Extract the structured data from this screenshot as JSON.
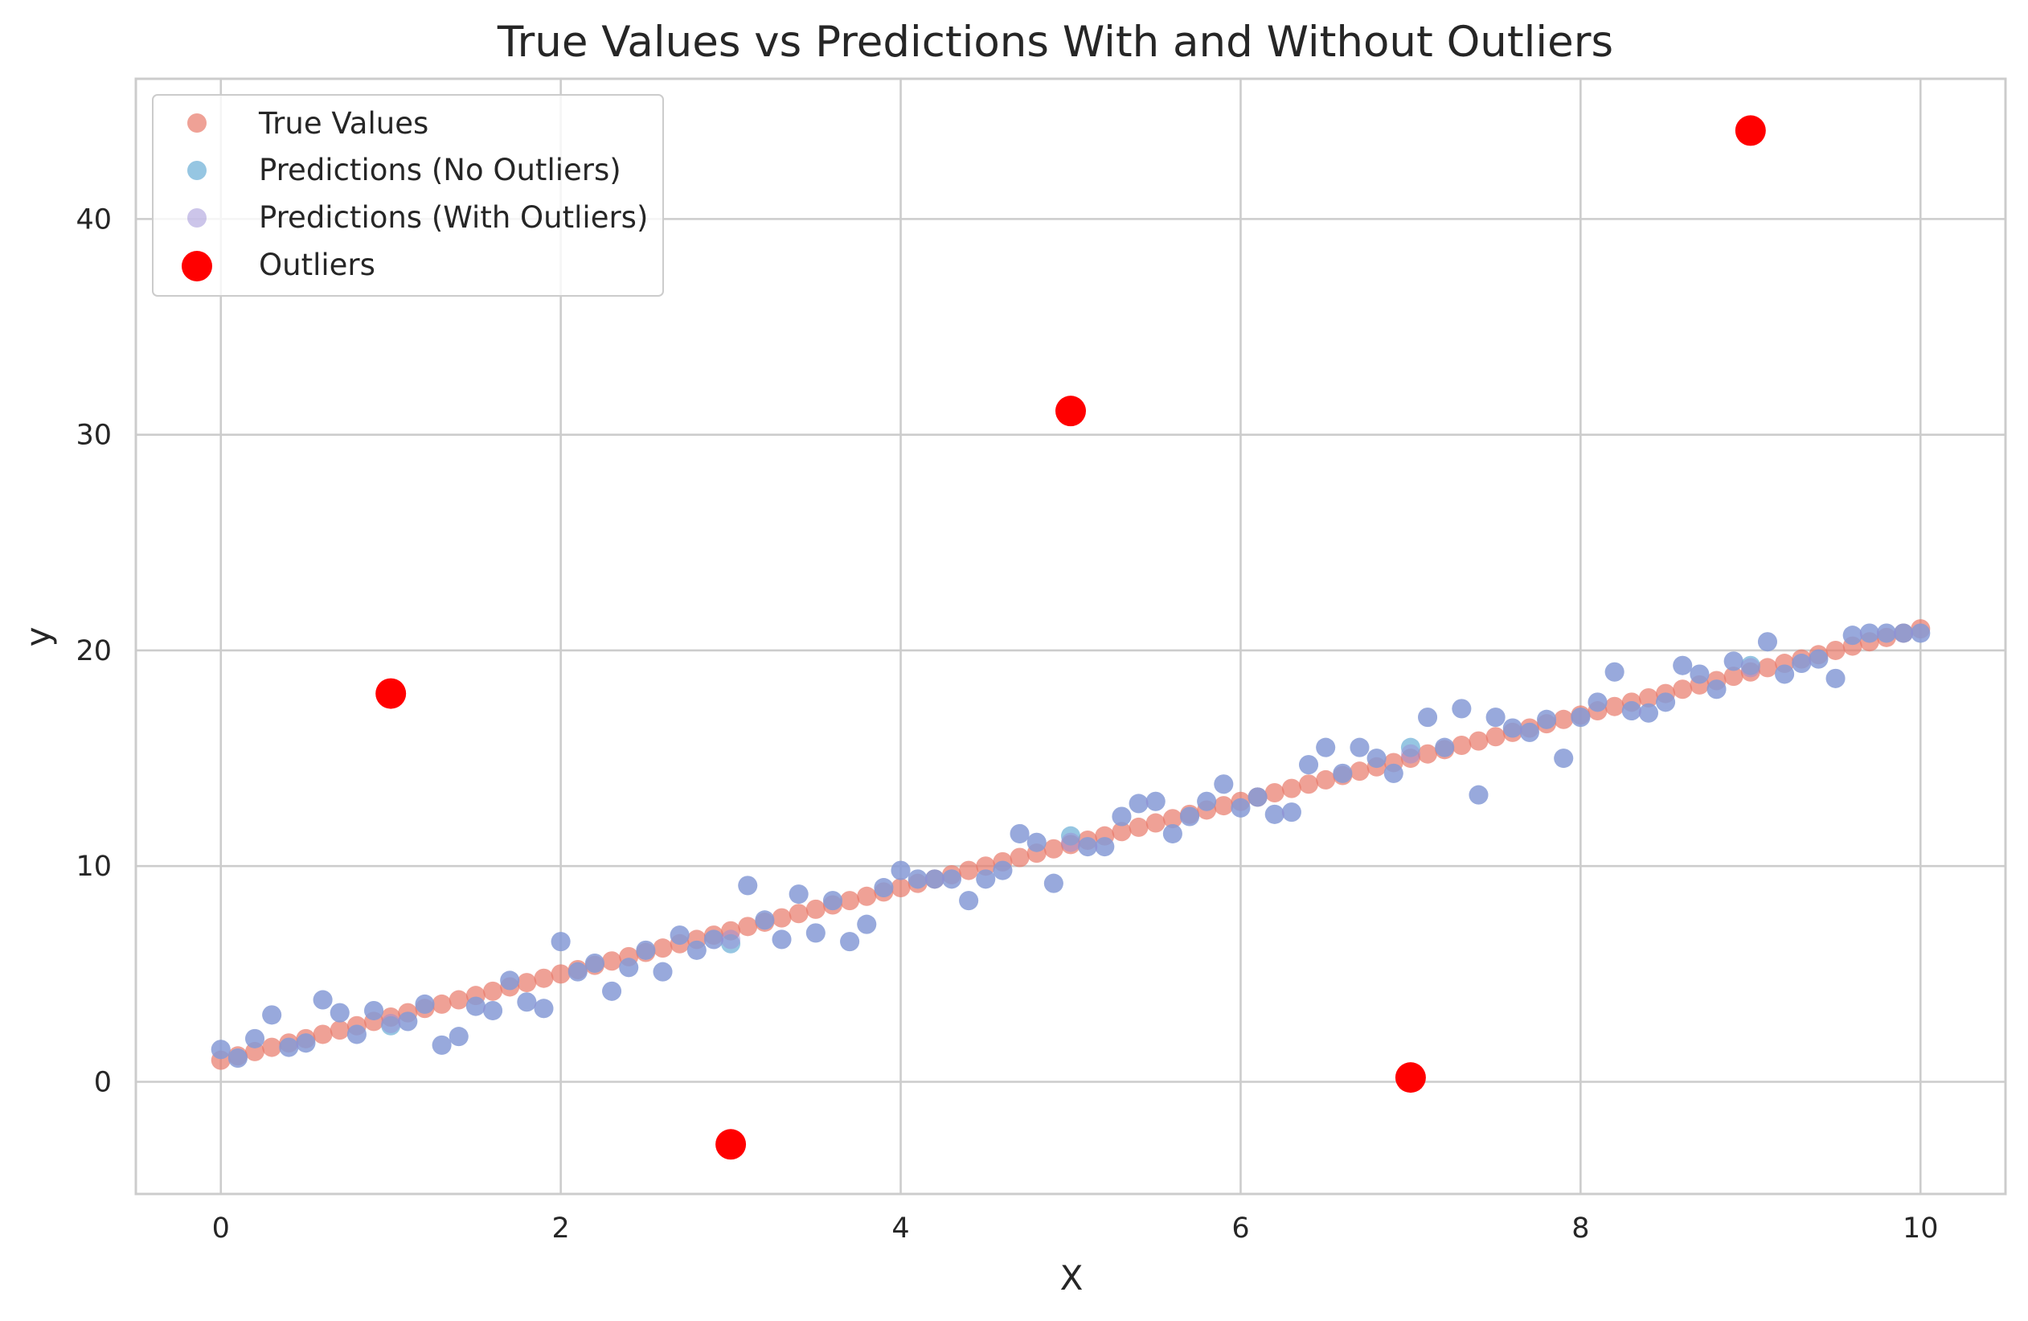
{
  "chart_data": {
    "type": "scatter",
    "title": "True Values vs Predictions With and Without Outliers",
    "xlabel": "X",
    "ylabel": "y",
    "xlim": [
      -0.5,
      10.5
    ],
    "ylim": [
      -5.2,
      46.5
    ],
    "xticks": [
      0,
      2,
      4,
      6,
      8,
      10
    ],
    "yticks": [
      0,
      10,
      20,
      30,
      40
    ],
    "grid": true,
    "legend_position": "top-left",
    "x": [
      0.0,
      0.1,
      0.2,
      0.3,
      0.4,
      0.5,
      0.6,
      0.7,
      0.8,
      0.9,
      1.0,
      1.1,
      1.2,
      1.3,
      1.4,
      1.5,
      1.6,
      1.7,
      1.8,
      1.9,
      2.0,
      2.1,
      2.2,
      2.3,
      2.4,
      2.5,
      2.6,
      2.7,
      2.8,
      2.9,
      3.0,
      3.1,
      3.2,
      3.3,
      3.4,
      3.5,
      3.6,
      3.7,
      3.8,
      3.9,
      4.0,
      4.1,
      4.2,
      4.3,
      4.4,
      4.5,
      4.6,
      4.7,
      4.8,
      4.9,
      5.0,
      5.1,
      5.2,
      5.3,
      5.4,
      5.5,
      5.6,
      5.7,
      5.8,
      5.9,
      6.0,
      6.1,
      6.2,
      6.3,
      6.4,
      6.5,
      6.6,
      6.7,
      6.8,
      6.9,
      7.0,
      7.1,
      7.2,
      7.3,
      7.4,
      7.5,
      7.6,
      7.7,
      7.8,
      7.9,
      8.0,
      8.1,
      8.2,
      8.3,
      8.4,
      8.5,
      8.6,
      8.7,
      8.8,
      8.9,
      9.0,
      9.1,
      9.2,
      9.3,
      9.4,
      9.5,
      9.6,
      9.7,
      9.8,
      9.9,
      10.0
    ],
    "series": [
      {
        "name": "True Values",
        "color": "#e8796a",
        "marker": "small-circle",
        "values": [
          1.0,
          1.2,
          1.4,
          1.6,
          1.8,
          2.0,
          2.2,
          2.4,
          2.6,
          2.8,
          3.0,
          3.2,
          3.4,
          3.6,
          3.8,
          4.0,
          4.2,
          4.4,
          4.6,
          4.8,
          5.0,
          5.2,
          5.4,
          5.6,
          5.8,
          6.0,
          6.2,
          6.4,
          6.6,
          6.8,
          7.0,
          7.2,
          7.4,
          7.6,
          7.8,
          8.0,
          8.2,
          8.4,
          8.6,
          8.8,
          9.0,
          9.2,
          9.4,
          9.6,
          9.8,
          10.0,
          10.2,
          10.4,
          10.6,
          10.8,
          11.0,
          11.2,
          11.4,
          11.6,
          11.8,
          12.0,
          12.2,
          12.4,
          12.6,
          12.8,
          13.0,
          13.2,
          13.4,
          13.6,
          13.8,
          14.0,
          14.2,
          14.4,
          14.6,
          14.8,
          15.0,
          15.2,
          15.4,
          15.6,
          15.8,
          16.0,
          16.2,
          16.4,
          16.6,
          16.8,
          17.0,
          17.2,
          17.4,
          17.6,
          17.8,
          18.0,
          18.2,
          18.4,
          18.6,
          18.8,
          19.0,
          19.2,
          19.4,
          19.6,
          19.8,
          20.0,
          20.2,
          20.4,
          20.6,
          20.8,
          21.0
        ]
      },
      {
        "name": "Predictions (No Outliers)",
        "color": "#6aaed6",
        "marker": "small-circle",
        "values": [
          1.5,
          1.1,
          2.0,
          3.1,
          1.6,
          1.8,
          3.8,
          3.2,
          2.2,
          3.3,
          2.6,
          2.8,
          3.6,
          1.7,
          2.1,
          3.5,
          3.3,
          4.7,
          3.7,
          3.4,
          6.5,
          5.1,
          5.5,
          4.2,
          5.3,
          6.1,
          5.1,
          6.8,
          6.1,
          6.6,
          6.4,
          9.1,
          7.5,
          6.6,
          8.7,
          6.9,
          8.4,
          6.5,
          7.3,
          9.0,
          9.8,
          9.4,
          9.4,
          9.4,
          8.4,
          9.4,
          9.8,
          11.5,
          11.1,
          9.2,
          11.4,
          10.9,
          10.9,
          12.3,
          12.9,
          13.0,
          11.5,
          12.3,
          13.0,
          13.8,
          12.7,
          13.2,
          12.4,
          12.5,
          14.7,
          15.5,
          14.3,
          15.5,
          15.0,
          14.3,
          15.5,
          16.9,
          15.5,
          17.3,
          13.3,
          16.9,
          16.4,
          16.2,
          16.8,
          15.0,
          16.9,
          17.6,
          19.0,
          17.2,
          17.1,
          17.6,
          19.3,
          18.9,
          18.2,
          19.5,
          19.3,
          20.4,
          18.9,
          19.4,
          19.6,
          18.7,
          20.7,
          20.8,
          20.8,
          20.8,
          20.8
        ]
      },
      {
        "name": "Predictions (With Outliers)",
        "color": "#9a8cd6",
        "marker": "small-circle",
        "values": [
          1.5,
          1.1,
          2.0,
          3.1,
          1.6,
          1.8,
          3.8,
          3.2,
          2.2,
          3.3,
          2.7,
          2.8,
          3.6,
          1.7,
          2.1,
          3.5,
          3.3,
          4.7,
          3.7,
          3.4,
          6.5,
          5.1,
          5.5,
          4.2,
          5.3,
          6.1,
          5.1,
          6.8,
          6.1,
          6.6,
          6.6,
          9.1,
          7.5,
          6.6,
          8.7,
          6.9,
          8.4,
          6.5,
          7.3,
          9.0,
          9.8,
          9.4,
          9.4,
          9.4,
          8.4,
          9.4,
          9.8,
          11.5,
          11.1,
          9.2,
          11.1,
          10.9,
          10.9,
          12.3,
          12.9,
          13.0,
          11.5,
          12.3,
          13.0,
          13.8,
          12.7,
          13.2,
          12.4,
          12.5,
          14.7,
          15.5,
          14.3,
          15.5,
          15.0,
          14.3,
          15.2,
          16.9,
          15.5,
          17.3,
          13.3,
          16.9,
          16.4,
          16.2,
          16.8,
          15.0,
          16.9,
          17.6,
          19.0,
          17.2,
          17.1,
          17.6,
          19.3,
          18.9,
          18.2,
          19.5,
          19.2,
          20.4,
          18.9,
          19.4,
          19.6,
          18.7,
          20.7,
          20.8,
          20.8,
          20.8,
          20.8
        ]
      },
      {
        "name": "Outliers",
        "color": "#ff0000",
        "marker": "large-circle",
        "points": [
          {
            "x": 1.0,
            "y": 18.0
          },
          {
            "x": 3.0,
            "y": -2.9
          },
          {
            "x": 5.0,
            "y": 31.1
          },
          {
            "x": 7.0,
            "y": 0.2
          },
          {
            "x": 9.0,
            "y": 44.1
          }
        ]
      }
    ]
  }
}
